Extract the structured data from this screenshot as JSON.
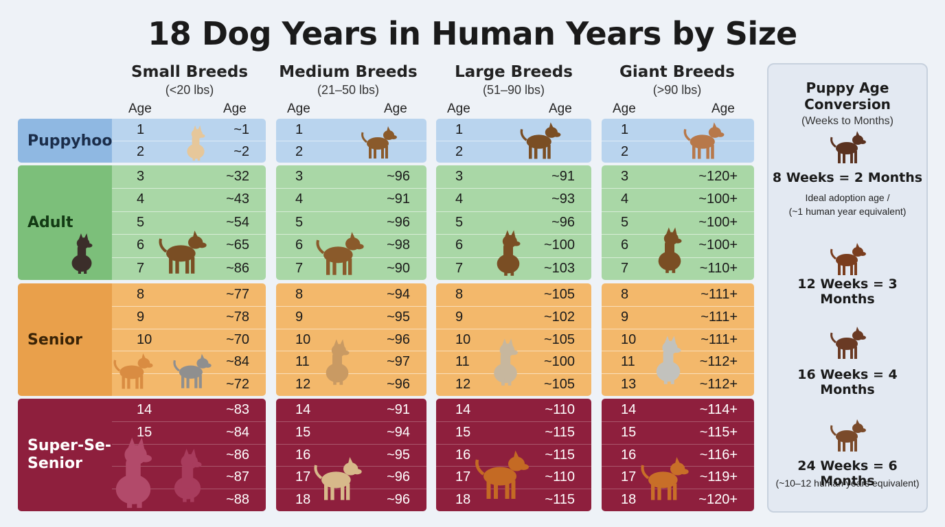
{
  "title": "18 Dog Years in Human Years by Size",
  "columns": [
    {
      "name": "Small Breeds",
      "range": "(<20 lbs)",
      "age_header": "Age",
      "human_header": "Age"
    },
    {
      "name": "Medium Breeds",
      "range": "(21–50 lbs)",
      "age_header": "Age",
      "human_header": "Age"
    },
    {
      "name": "Large Breeds",
      "range": "(51–90 lbs)",
      "age_header": "Age",
      "human_header": "Age"
    },
    {
      "name": "Giant Breeds",
      "range": "(>90 lbs)",
      "age_header": "Age",
      "human_header": "Age"
    }
  ],
  "groups": [
    "Puppyhood",
    "Adult",
    "Senior",
    "Super-Se-\nSenior"
  ],
  "group_colors": {
    "puppy": "#b9d4ee",
    "adult": "#a9d7a6",
    "senior": "#f3b86b",
    "super": "#8e1f3d"
  },
  "table": {
    "small": {
      "ages": [
        "1",
        "2",
        "3",
        "4",
        "5",
        "6",
        "7",
        "8",
        "9",
        "10",
        "",
        "",
        "14",
        "15",
        "",
        "",
        ""
      ],
      "human": [
        "~1",
        "~2",
        "~32",
        "~43",
        "~54",
        "~65",
        "~86",
        "~77",
        "~78",
        "~70",
        "~84",
        "~72",
        "~83",
        "~84",
        "~86",
        "~87",
        "~88"
      ]
    },
    "medium": {
      "ages": [
        "1",
        "2",
        "3",
        "4",
        "5",
        "6",
        "7",
        "8",
        "9",
        "10",
        "11",
        "12",
        "14",
        "15",
        "16",
        "17",
        "18"
      ],
      "human": [
        "",
        "",
        "~96",
        "~91",
        "~96",
        "~98",
        "~90",
        "~94",
        "~95",
        "~96",
        "~97",
        "~96",
        "~91",
        "~94",
        "~95",
        "~96",
        "~96"
      ]
    },
    "large": {
      "ages": [
        "1",
        "2",
        "3",
        "4",
        "5",
        "6",
        "7",
        "8",
        "9",
        "10",
        "11",
        "12",
        "14",
        "15",
        "16",
        "17",
        "18"
      ],
      "human": [
        "",
        "",
        "~91",
        "~93",
        "~96",
        "~100",
        "~103",
        "~105",
        "~102",
        "~105",
        "~100",
        "~105",
        "~110",
        "~115",
        "~115",
        "~110",
        "~115"
      ]
    },
    "giant": {
      "ages": [
        "1",
        "2",
        "3",
        "4",
        "5",
        "6",
        "7",
        "8",
        "9",
        "10",
        "11",
        "13",
        "14",
        "15",
        "16",
        "17",
        "18"
      ],
      "human": [
        "",
        "",
        "~120+",
        "~100+",
        "~100+",
        "~100+",
        "~110+",
        "~111+",
        "~111+",
        "~111+",
        "~112+",
        "~112+",
        "~114+",
        "~115+",
        "~116+",
        "~119+",
        "~120+"
      ]
    }
  },
  "sidebar": {
    "title": "Puppy Age Conversion",
    "subtitle": "(Weeks to Months)",
    "items": [
      {
        "label": "8 Weeks = 2 Months",
        "note": "Ideal adoption age /\n(~1 human year equivalent)"
      },
      {
        "label": "12 Weeks = 3 Months",
        "note": ""
      },
      {
        "label": "16 Weeks = 4 Months",
        "note": ""
      },
      {
        "label": "24 Weeks = 6 Months",
        "note": "(~10–12 human years equivalent)"
      }
    ]
  }
}
